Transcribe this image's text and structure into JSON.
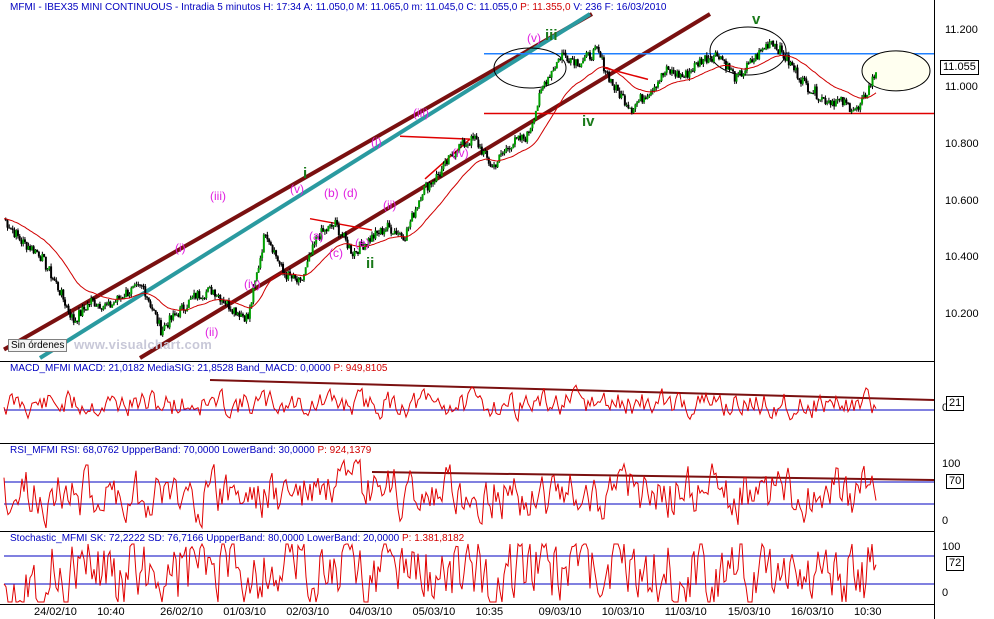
{
  "header": {
    "symbol": "MFMI",
    "name": "IBEX35 MINI CONTINUOUS",
    "period": "Intradia 5 minutos",
    "h": "H: 17:34",
    "a": "A: 11.050,0",
    "m_high": "M: 11.065,0",
    "m_low": "m: 11.045,0",
    "c": "C: 11.055,0",
    "p": "P: 11.355,0",
    "v": "V: 236",
    "f": "F: 16/03/2010"
  },
  "main": {
    "sin_ordenes": "Sin órdenes",
    "watermark": "www.visualchart.com",
    "last_price": "11.055",
    "y_ticks": [
      "11.200",
      "11.000",
      "10.800",
      "10.600",
      "10.400",
      "10.200"
    ],
    "wave_labels": {
      "i_green": "i",
      "ii_green": "ii",
      "iii_green": "iii",
      "iv_green": "iv",
      "v_green": "v",
      "p_i1": "(i)",
      "p_ii1": "(ii)",
      "p_iii1": "(iii)",
      "p_iv1": "(iv)",
      "p_v1": "(v)",
      "p_a": "(a)",
      "p_b": "(b)",
      "p_c": "(c)",
      "p_d": "(d)",
      "p_e": "(e)",
      "p_i2": "(i)",
      "p_ii2": "(ii)",
      "p_iii2": "(iii)",
      "p_iv2": "(iv)",
      "p_v2": "(v)"
    }
  },
  "macd": {
    "title": "MACD_MFMI",
    "macd": "MACD: 21,0182",
    "mediasig": "MediaSIG: 21,8528",
    "band": "Band_MACD: 0,0000",
    "p": "P: 949,8105",
    "value_box": "21",
    "zero_tick": "0"
  },
  "rsi": {
    "title": "RSI_MFMI",
    "rsi": "RSI: 68,0762",
    "upper": "UppperBand: 70,0000",
    "lower": "LowerBand: 30,0000",
    "p": "P: 924,1379",
    "value_box": "70",
    "tick_100": "100",
    "tick_0": "0"
  },
  "stoch": {
    "title": "Stochastic_MFMI",
    "sk": "SK: 72,2222",
    "sd": "SD: 76,7166",
    "upper": "UppperBand: 80,0000",
    "lower": "LowerBand: 20,0000",
    "p": "P: 1.381,8182",
    "value_box": "72",
    "tick_100": "100",
    "tick_0": "0"
  },
  "x_ticks": [
    "24/02/10",
    "10:40",
    "26/02/10",
    "01/03/10",
    "02/03/10",
    "04/03/10",
    "05/03/10",
    "10:35",
    "09/03/10",
    "10/03/10",
    "11/03/10",
    "15/03/10",
    "16/03/10",
    "10:30"
  ],
  "colors": {
    "price": "#000000",
    "up_candle": "#00a000",
    "ma": "#d00000",
    "channel": "#7a1010",
    "teal": "#2a9aa0",
    "hline_blue": "#2080ff",
    "hline_red": "#e00000",
    "indicator": "#e00000",
    "band": "#0000c0",
    "wave_pink": "#e020e0",
    "wave_green": "#1a7a1a",
    "header_text": "#0000c0"
  },
  "chart_data": {
    "type": "line",
    "title": "MFMI - IBEX35 MINI CONTINUOUS - Intradia 5 minutos",
    "x_ticks": [
      "24/02/10",
      "10:40",
      "26/02/10",
      "01/03/10",
      "02/03/10",
      "04/03/10",
      "05/03/10",
      "10:35",
      "09/03/10",
      "10/03/10",
      "11/03/10",
      "15/03/10",
      "16/03/10",
      "10:30"
    ],
    "ylim": [
      10050,
      11260
    ],
    "series": [
      {
        "name": "MFMI",
        "x_index": [
          0,
          2,
          4,
          6,
          8,
          10,
          12,
          14,
          16,
          18,
          20,
          22,
          24,
          26,
          28,
          30,
          32,
          34,
          36,
          38,
          40,
          42,
          44,
          46,
          48,
          50,
          52,
          54,
          56,
          58,
          60,
          62,
          64,
          66,
          68,
          70,
          72,
          74,
          76,
          78,
          80,
          82,
          84,
          86,
          88,
          90,
          92,
          94,
          96,
          98,
          100
        ],
        "values": [
          10540,
          10460,
          10420,
          10310,
          10180,
          10250,
          10230,
          10280,
          10300,
          10150,
          10210,
          10270,
          10290,
          10230,
          10190,
          10500,
          10350,
          10310,
          10480,
          10520,
          10420,
          10470,
          10510,
          10480,
          10640,
          10700,
          10790,
          10820,
          10720,
          10800,
          10830,
          11020,
          11120,
          11090,
          11130,
          11000,
          10930,
          10990,
          11060,
          11040,
          11100,
          11120,
          11030,
          11100,
          11170,
          11090,
          11010,
          10960,
          10950,
          10920,
          11055
        ]
      }
    ],
    "hlines": [
      11120,
      10910
    ],
    "last": 11055
  }
}
